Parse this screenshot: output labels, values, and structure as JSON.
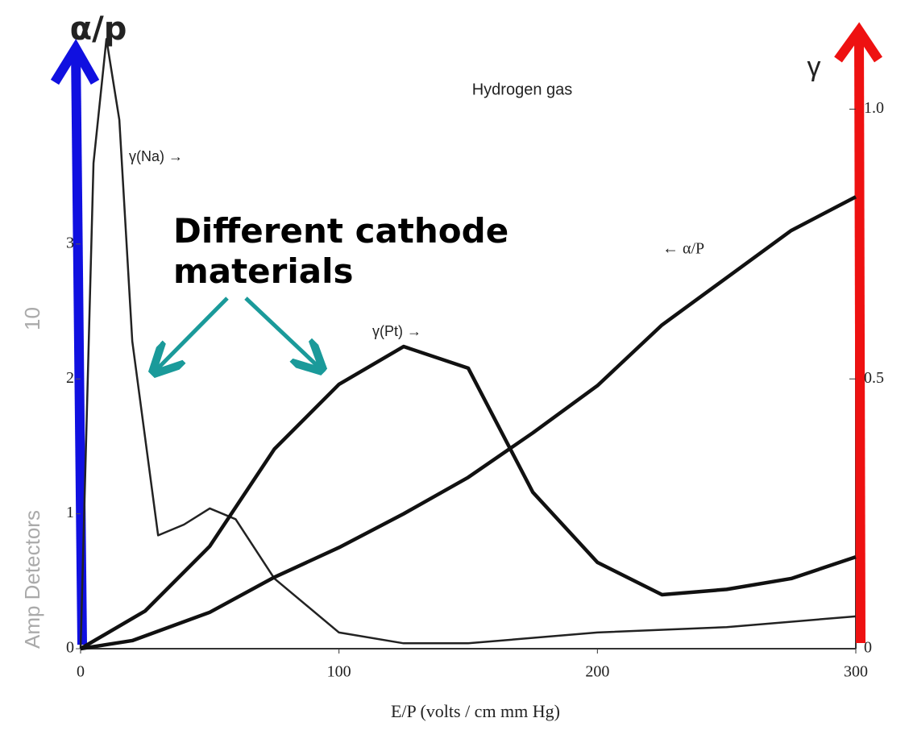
{
  "chart_data": {
    "type": "line",
    "title": "Hydrogen gas",
    "y_axis_label": "α/p",
    "y2_axis_label": "γ",
    "x_axis_label": "E/P (volts / cm mm Hg)",
    "annotation": "Different cathode materials",
    "curve_labels": [
      "γ(Na) →",
      "γ(Pt) →",
      "← α/P"
    ],
    "side_text": "Amp Detectors",
    "side_number": "10",
    "xlim": [
      0,
      300
    ],
    "xticks": [
      0,
      100,
      200,
      300
    ],
    "ylim": [
      0,
      4.6
    ],
    "yticks": [
      0,
      1,
      2,
      3
    ],
    "y2lim": [
      0,
      1.15
    ],
    "y2ticks": [
      0,
      0.5,
      {
        "value": 1,
        "label": "1.0"
      }
    ],
    "grid": false,
    "series": [
      {
        "name": "γ(Na)",
        "color": "#222222",
        "axis": "y2",
        "x": [
          0,
          5,
          10,
          15,
          20,
          30,
          40,
          50,
          60,
          75,
          100,
          125,
          150,
          200,
          250,
          300
        ],
        "values": [
          0,
          0.9,
          1.13,
          0.98,
          0.57,
          0.21,
          0.23,
          0.26,
          0.24,
          0.13,
          0.03,
          0.01,
          0.01,
          0.03,
          0.04,
          0.06
        ]
      },
      {
        "name": "γ(Pt)",
        "color": "#111111",
        "axis": "y2",
        "x": [
          0,
          25,
          50,
          75,
          100,
          125,
          150,
          175,
          200,
          225,
          250,
          275,
          300
        ],
        "values": [
          0,
          0.07,
          0.19,
          0.37,
          0.49,
          0.56,
          0.52,
          0.29,
          0.16,
          0.1,
          0.11,
          0.13,
          0.17
        ]
      },
      {
        "name": "α/P",
        "color": "#111111",
        "axis": "y",
        "x": [
          0,
          20,
          50,
          75,
          100,
          125,
          150,
          175,
          200,
          225,
          250,
          275,
          300
        ],
        "values": [
          0,
          0.06,
          0.27,
          0.53,
          0.75,
          1.0,
          1.27,
          1.6,
          1.95,
          2.4,
          2.75,
          3.1,
          3.35
        ]
      }
    ]
  }
}
